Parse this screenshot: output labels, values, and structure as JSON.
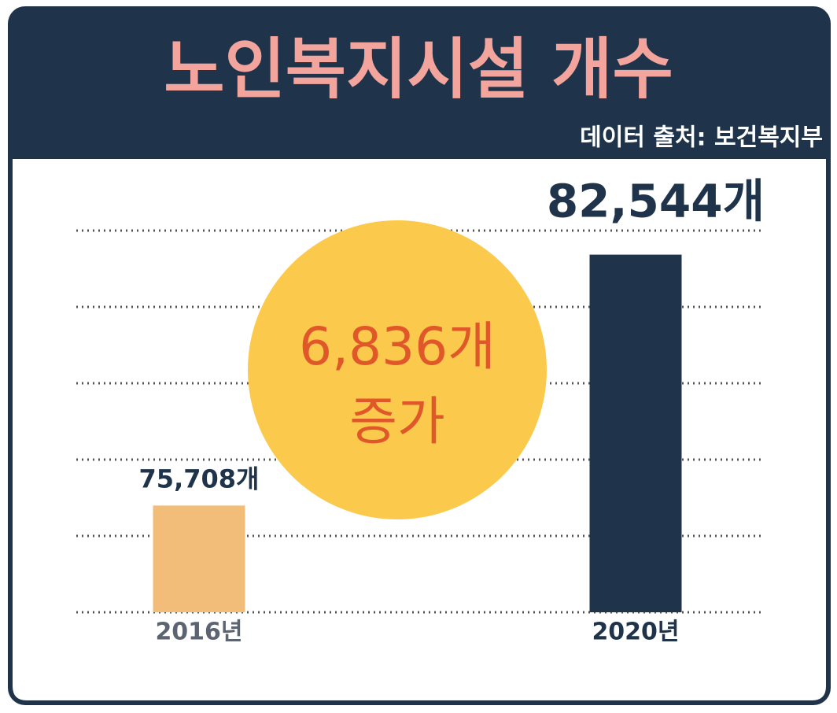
{
  "chart_data": {
    "type": "bar",
    "title": "노인복지시설 개수",
    "subtitle": "데이터 출처: 보건복지부",
    "categories": [
      "2016년",
      "2020년"
    ],
    "values": [
      75708,
      82544
    ],
    "value_labels": [
      "75,708개",
      "82,544개"
    ],
    "colors": [
      "#f2bc79",
      "#1f344a"
    ],
    "annotations": [
      "6,836개",
      "증가"
    ],
    "ylim": [
      72800,
      83200
    ],
    "yticks": [
      72800,
      74880,
      76960,
      79040,
      81120,
      83200
    ],
    "grid": true
  }
}
